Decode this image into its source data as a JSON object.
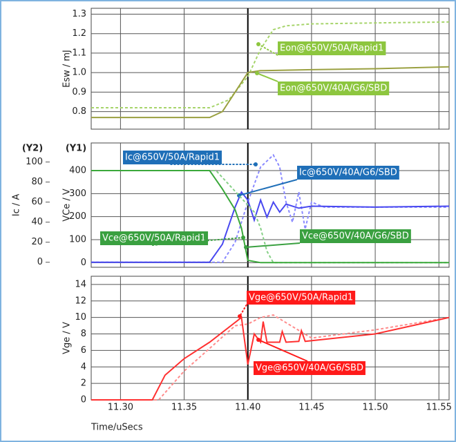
{
  "chart_data": [
    {
      "type": "line",
      "ylabel": "Esw / mJ",
      "xlim": [
        11.277,
        11.558
      ],
      "xticks": [
        11.3,
        11.35,
        11.4,
        11.45,
        11.5,
        11.55
      ],
      "ylim": [
        0.71,
        1.33
      ],
      "yticks": [
        0.8,
        0.9,
        {
          "value": 1.0,
          "label": "1.0"
        },
        1.1,
        1.2,
        1.3
      ],
      "grid": true,
      "series": [
        {
          "name": "Eon@650V/50A/Rapid1",
          "color": "#a6d46a",
          "label_color": "#8dc63f",
          "dashed": true,
          "x": [
            11.277,
            11.37,
            11.385,
            11.4,
            11.41,
            11.42,
            11.43,
            11.45,
            11.5,
            11.558
          ],
          "values": [
            0.82,
            0.82,
            0.86,
            0.98,
            1.12,
            1.22,
            1.24,
            1.25,
            1.255,
            1.26
          ]
        },
        {
          "name": "Eon@650V/40A/G6/SBD",
          "color": "#9aa040",
          "label_color": "#8dc63f",
          "dashed": false,
          "x": [
            11.277,
            11.37,
            11.38,
            11.39,
            11.4,
            11.41,
            11.45,
            11.5,
            11.558
          ],
          "values": [
            0.77,
            0.77,
            0.8,
            0.9,
            1.0,
            1.01,
            1.015,
            1.02,
            1.03
          ]
        }
      ]
    },
    {
      "type": "line",
      "ylabel": "VCe / V",
      "ylabel_tag": "(Y1)",
      "y2label": "Ic / A",
      "y2label_tag": "(Y2)",
      "xlim": [
        11.277,
        11.558
      ],
      "xticks": [
        11.3,
        11.35,
        11.4,
        11.45,
        11.5,
        11.55
      ],
      "ylim": [
        -20,
        520
      ],
      "yticks": [
        0,
        100,
        200,
        300,
        400
      ],
      "y2lim": [
        -5,
        119
      ],
      "y2ticks": [
        0,
        20,
        40,
        60,
        80,
        100
      ],
      "grid": true,
      "series": [
        {
          "name": "Ic@650V/50A/Rapid1",
          "axis": "y2",
          "color": "#8a8aff",
          "label_color": "#1f6fb8",
          "dashed": true,
          "x": [
            11.277,
            11.38,
            11.39,
            11.4,
            11.41,
            11.42,
            11.425,
            11.43,
            11.435,
            11.44,
            11.445,
            11.45,
            11.46,
            11.558
          ],
          "values": [
            0,
            0,
            20,
            60,
            95,
            107,
            95,
            60,
            40,
            70,
            33,
            60,
            55,
            55
          ]
        },
        {
          "name": "Ic@650V/40A/G6/SBD",
          "axis": "y2",
          "color": "#4848f0",
          "label_color": "#1f6fb8",
          "dashed": false,
          "x": [
            11.277,
            11.37,
            11.38,
            11.39,
            11.395,
            11.4,
            11.405,
            11.41,
            11.415,
            11.42,
            11.425,
            11.43,
            11.44,
            11.45,
            11.5,
            11.558
          ],
          "values": [
            0,
            0,
            18,
            55,
            70,
            62,
            42,
            62,
            45,
            60,
            50,
            58,
            54,
            56,
            55,
            56
          ]
        },
        {
          "name": "Vce@650V/50A/Rapid1",
          "color": "#86d086",
          "label_color": "#3aa040",
          "dashed": true,
          "x": [
            11.277,
            11.375,
            11.385,
            11.395,
            11.405,
            11.41,
            11.415,
            11.42,
            11.558
          ],
          "values": [
            400,
            400,
            340,
            280,
            220,
            150,
            50,
            0,
            0
          ]
        },
        {
          "name": "Vce@650V/40A/G6/SBD",
          "color": "#3aa83a",
          "label_color": "#3aa040",
          "dashed": false,
          "x": [
            11.277,
            11.37,
            11.38,
            11.39,
            11.395,
            11.4,
            11.41,
            11.558
          ],
          "values": [
            400,
            400,
            320,
            230,
            150,
            10,
            0,
            0
          ]
        }
      ]
    },
    {
      "type": "line",
      "ylabel": "Vge / V",
      "xlabel": "Time/uSecs",
      "xlim": [
        11.277,
        11.558
      ],
      "xticks": [
        {
          "value": 11.3,
          "label": "11.30"
        },
        11.35,
        {
          "value": 11.4,
          "label": "11.40"
        },
        11.45,
        {
          "value": 11.5,
          "label": "11.50"
        },
        11.55
      ],
      "ylim": [
        0,
        15
      ],
      "yticks": [
        0,
        2,
        4,
        6,
        8,
        10,
        12,
        14
      ],
      "grid": true,
      "series": [
        {
          "name": "Vge@650V/50A/Rapid1",
          "color": "#ff8c8c",
          "label_color": "#ff1a1a",
          "dashed": true,
          "x": [
            11.277,
            11.33,
            11.35,
            11.39,
            11.4,
            11.41,
            11.42,
            11.45,
            11.5,
            11.558
          ],
          "values": [
            0,
            0,
            3.5,
            9,
            9.2,
            10,
            10.3,
            7.5,
            8.5,
            10
          ]
        },
        {
          "name": "Vge@650V/40A/G6/SBD",
          "color": "#ff3030",
          "label_color": "#ff1a1a",
          "dashed": false,
          "x": [
            11.277,
            11.325,
            11.335,
            11.35,
            11.37,
            11.395,
            11.4,
            11.405,
            11.41,
            11.412,
            11.415,
            11.42,
            11.425,
            11.427,
            11.43,
            11.44,
            11.442,
            11.445,
            11.5,
            11.558
          ],
          "values": [
            0,
            0,
            3,
            5,
            7,
            10,
            4.3,
            8,
            7,
            9.5,
            7,
            7,
            7,
            8.3,
            7,
            7.1,
            8.4,
            7.1,
            8,
            10
          ]
        }
      ]
    }
  ]
}
